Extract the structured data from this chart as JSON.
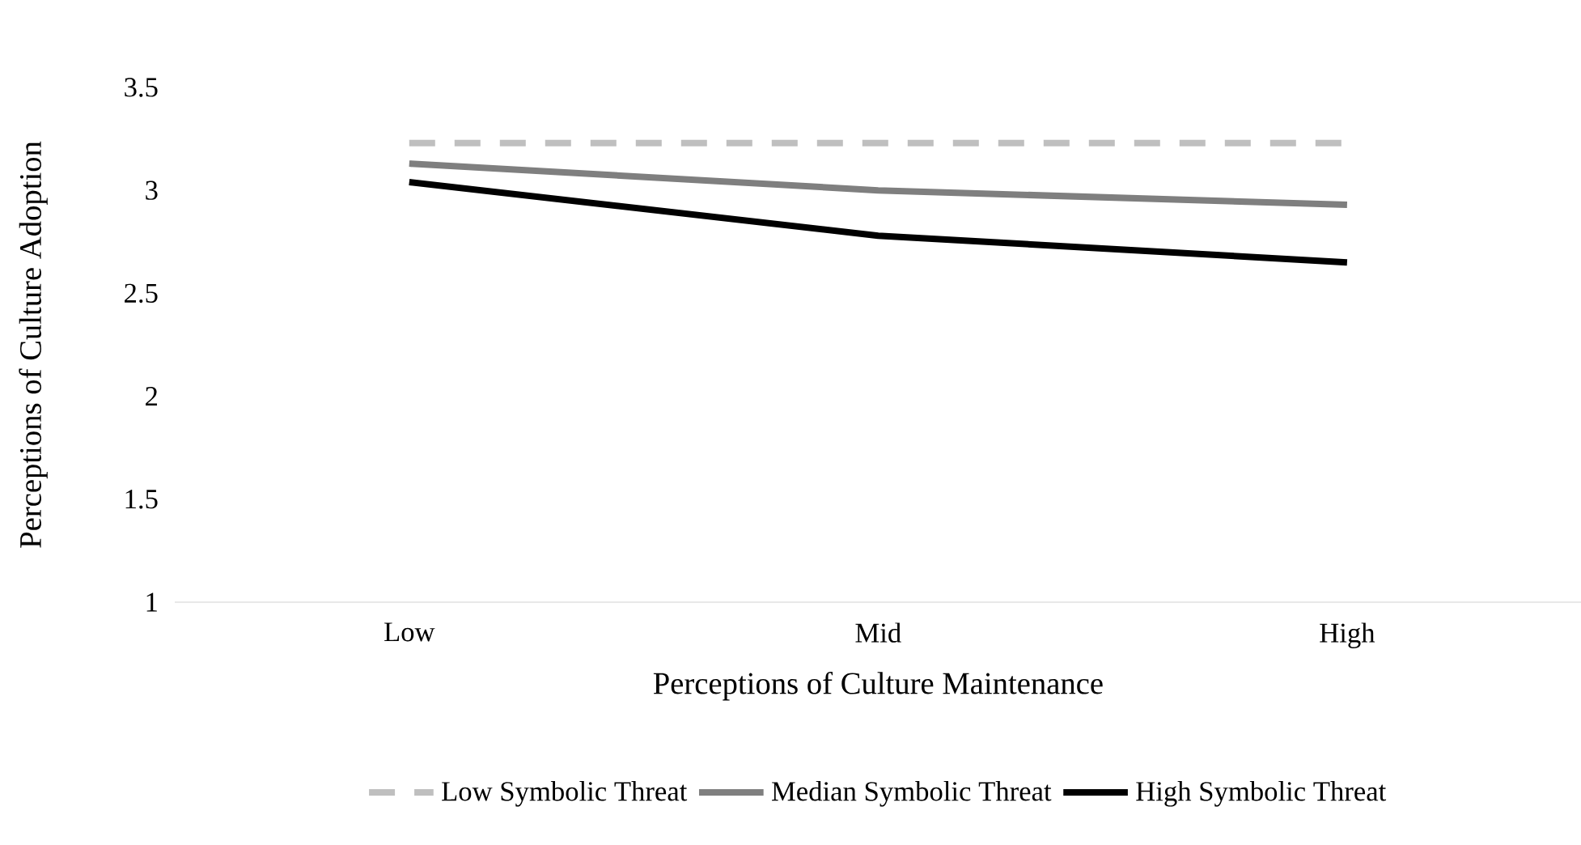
{
  "chart_data": {
    "type": "line",
    "xlabel": "Perceptions of Culture Maintenance",
    "ylabel": "Perceptions of Culture Adoption",
    "categories": [
      "Low",
      "Mid",
      "High"
    ],
    "ylim": [
      1,
      3.5
    ],
    "yticks": [
      1,
      1.5,
      2,
      2.5,
      3,
      3.5
    ],
    "grid": false,
    "legend": "bottom",
    "marker": "none",
    "series": [
      {
        "name": "Low Symbolic Threat",
        "color": "#bfbfbf",
        "line_style": "dashed",
        "values": [
          3.23,
          3.23,
          3.23
        ]
      },
      {
        "name": "Median Symbolic Threat",
        "color": "#7f7f7f",
        "line_style": "solid",
        "values": [
          3.13,
          3.0,
          2.93
        ]
      },
      {
        "name": "High Symbolic Threat",
        "color": "#000000",
        "line_style": "solid",
        "values": [
          3.04,
          2.78,
          2.65
        ]
      }
    ]
  }
}
